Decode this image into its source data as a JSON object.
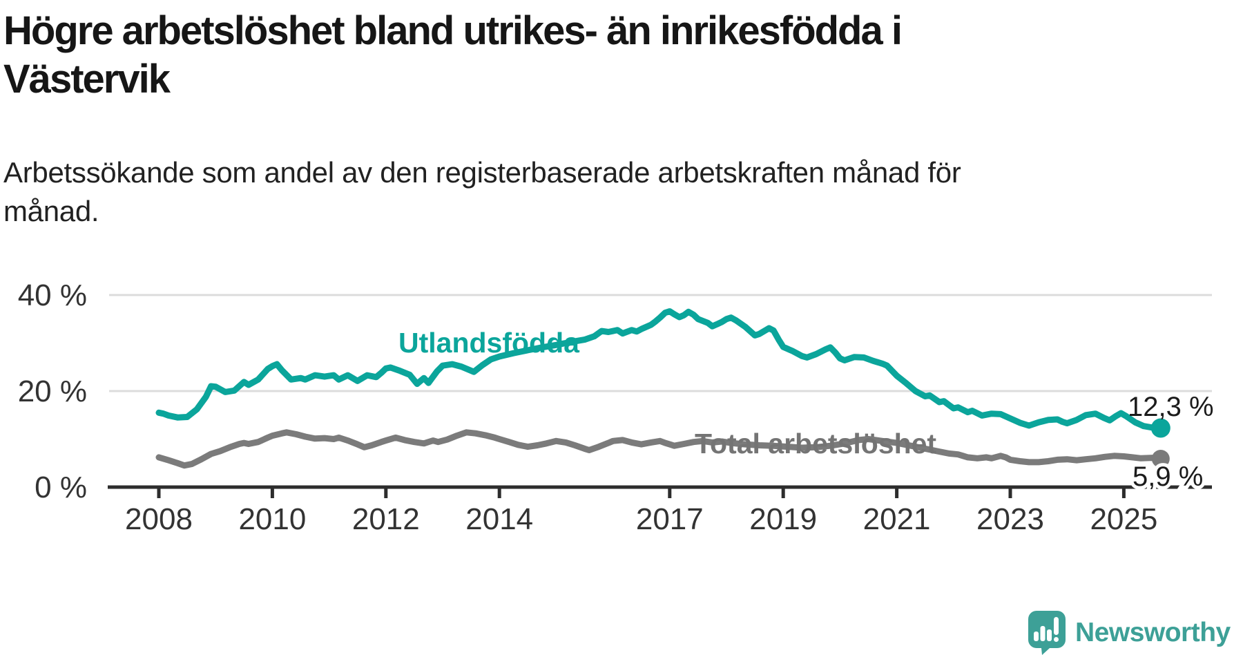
{
  "header": {
    "title_lines": [
      "Högre arbetslöshet bland utrikes- än inrikesfödda i",
      "Västervik"
    ],
    "subtitle_lines": [
      "Arbetssökande som andel av den registerbaserade arbetskraften månad för",
      "månad."
    ]
  },
  "chart_data": {
    "type": "line",
    "title": "Högre arbetslöshet bland utrikes- än inrikesfödda i Västervik",
    "subtitle": "Arbetssökande som andel av den registerbaserade arbetskraften månad för månad.",
    "unit": "%",
    "grid": true,
    "legend_position": "inline-labels",
    "colors": {
      "grid": "#dcdcdc",
      "axis": "#2d2d2d",
      "tick_label": "#333333",
      "annotation": "#1b1b1b",
      "background": "#ffffff"
    },
    "x_axis": {
      "range": [
        2007.6,
        2026.1
      ],
      "ticks": [
        {
          "year": 2008,
          "label": "2008"
        },
        {
          "year": 2010,
          "label": "2010"
        },
        {
          "year": 2012,
          "label": "2012"
        },
        {
          "year": 2014,
          "label": "2014"
        },
        {
          "year": 2017,
          "label": "2017"
        },
        {
          "year": 2019,
          "label": "2019"
        },
        {
          "year": 2021,
          "label": "2021"
        },
        {
          "year": 2023,
          "label": "2023"
        },
        {
          "year": 2025,
          "label": "2025"
        }
      ]
    },
    "y_axis": {
      "range": [
        0,
        42
      ],
      "ticks": [
        {
          "value": 0,
          "label": "0 %"
        },
        {
          "value": 20,
          "label": "20 %"
        },
        {
          "value": 40,
          "label": "40 %"
        }
      ]
    },
    "series": [
      {
        "name": "Utlandsfödda",
        "color": "#0ba59b",
        "label_color": "#0ba59b",
        "end_label": "12,3 %",
        "end_value": 12.3,
        "points": [
          [
            2008.0,
            15.5
          ],
          [
            2008.08,
            15.3
          ],
          [
            2008.17,
            14.9
          ],
          [
            2008.33,
            14.5
          ],
          [
            2008.5,
            14.6
          ],
          [
            2008.67,
            16.2
          ],
          [
            2008.83,
            18.8
          ],
          [
            2008.92,
            21.0
          ],
          [
            2009.0,
            20.9
          ],
          [
            2009.17,
            19.8
          ],
          [
            2009.33,
            20.1
          ],
          [
            2009.5,
            21.9
          ],
          [
            2009.58,
            21.3
          ],
          [
            2009.75,
            22.4
          ],
          [
            2009.92,
            24.6
          ],
          [
            2010.0,
            25.2
          ],
          [
            2010.08,
            25.6
          ],
          [
            2010.17,
            24.3
          ],
          [
            2010.33,
            22.4
          ],
          [
            2010.5,
            22.7
          ],
          [
            2010.58,
            22.4
          ],
          [
            2010.75,
            23.3
          ],
          [
            2010.92,
            23.0
          ],
          [
            2011.08,
            23.3
          ],
          [
            2011.17,
            22.4
          ],
          [
            2011.33,
            23.3
          ],
          [
            2011.5,
            22.1
          ],
          [
            2011.67,
            23.3
          ],
          [
            2011.83,
            22.9
          ],
          [
            2011.92,
            23.8
          ],
          [
            2012.0,
            24.7
          ],
          [
            2012.08,
            24.9
          ],
          [
            2012.25,
            24.2
          ],
          [
            2012.42,
            23.4
          ],
          [
            2012.55,
            21.5
          ],
          [
            2012.67,
            22.7
          ],
          [
            2012.75,
            21.7
          ],
          [
            2012.9,
            24.1
          ],
          [
            2013.0,
            25.3
          ],
          [
            2013.17,
            25.6
          ],
          [
            2013.33,
            25.1
          ],
          [
            2013.55,
            24.0
          ],
          [
            2013.7,
            25.4
          ],
          [
            2013.85,
            26.6
          ],
          [
            2014.0,
            27.2
          ],
          [
            2014.25,
            27.9
          ],
          [
            2014.5,
            28.5
          ],
          [
            2014.75,
            29.1
          ],
          [
            2015.0,
            29.6
          ],
          [
            2015.25,
            30.2
          ],
          [
            2015.5,
            30.7
          ],
          [
            2015.67,
            31.4
          ],
          [
            2015.8,
            32.5
          ],
          [
            2015.92,
            32.3
          ],
          [
            2016.08,
            32.7
          ],
          [
            2016.17,
            32.0
          ],
          [
            2016.33,
            32.7
          ],
          [
            2016.42,
            32.4
          ],
          [
            2016.5,
            32.9
          ],
          [
            2016.67,
            33.8
          ],
          [
            2016.75,
            34.5
          ],
          [
            2016.83,
            35.3
          ],
          [
            2016.92,
            36.3
          ],
          [
            2017.0,
            36.6
          ],
          [
            2017.08,
            36.0
          ],
          [
            2017.17,
            35.4
          ],
          [
            2017.25,
            35.8
          ],
          [
            2017.33,
            36.5
          ],
          [
            2017.42,
            35.9
          ],
          [
            2017.5,
            35.0
          ],
          [
            2017.67,
            34.2
          ],
          [
            2017.75,
            33.5
          ],
          [
            2017.83,
            33.9
          ],
          [
            2017.92,
            34.4
          ],
          [
            2018.0,
            35.0
          ],
          [
            2018.08,
            35.3
          ],
          [
            2018.17,
            34.7
          ],
          [
            2018.33,
            33.4
          ],
          [
            2018.5,
            31.6
          ],
          [
            2018.58,
            31.9
          ],
          [
            2018.75,
            33.1
          ],
          [
            2018.83,
            32.6
          ],
          [
            2018.92,
            30.7
          ],
          [
            2019.0,
            29.2
          ],
          [
            2019.17,
            28.3
          ],
          [
            2019.33,
            27.3
          ],
          [
            2019.42,
            27.0
          ],
          [
            2019.58,
            27.7
          ],
          [
            2019.75,
            28.7
          ],
          [
            2019.83,
            29.1
          ],
          [
            2019.92,
            28.0
          ],
          [
            2020.0,
            26.8
          ],
          [
            2020.08,
            26.4
          ],
          [
            2020.25,
            27.1
          ],
          [
            2020.42,
            27.0
          ],
          [
            2020.58,
            26.3
          ],
          [
            2020.75,
            25.7
          ],
          [
            2020.83,
            25.3
          ],
          [
            2021.0,
            23.2
          ],
          [
            2021.17,
            21.6
          ],
          [
            2021.33,
            20.0
          ],
          [
            2021.5,
            18.9
          ],
          [
            2021.58,
            19.1
          ],
          [
            2021.75,
            17.7
          ],
          [
            2021.83,
            17.9
          ],
          [
            2021.92,
            17.1
          ],
          [
            2022.0,
            16.4
          ],
          [
            2022.08,
            16.6
          ],
          [
            2022.25,
            15.6
          ],
          [
            2022.33,
            15.9
          ],
          [
            2022.5,
            14.9
          ],
          [
            2022.67,
            15.3
          ],
          [
            2022.83,
            15.2
          ],
          [
            2023.0,
            14.3
          ],
          [
            2023.17,
            13.4
          ],
          [
            2023.33,
            12.8
          ],
          [
            2023.5,
            13.5
          ],
          [
            2023.67,
            14.0
          ],
          [
            2023.83,
            14.1
          ],
          [
            2023.92,
            13.6
          ],
          [
            2024.0,
            13.3
          ],
          [
            2024.17,
            14.0
          ],
          [
            2024.33,
            15.0
          ],
          [
            2024.5,
            15.3
          ],
          [
            2024.65,
            14.4
          ],
          [
            2024.75,
            13.9
          ],
          [
            2024.85,
            14.7
          ],
          [
            2024.95,
            15.4
          ],
          [
            2025.05,
            14.7
          ],
          [
            2025.2,
            13.5
          ],
          [
            2025.35,
            12.7
          ],
          [
            2025.5,
            12.4
          ],
          [
            2025.65,
            12.3
          ]
        ]
      },
      {
        "name": "Total arbetslöshet",
        "color": "#7b7b7b",
        "label_color": "#747474",
        "end_label": "5,9 %",
        "end_value": 5.9,
        "points": [
          [
            2008.0,
            6.2
          ],
          [
            2008.17,
            5.6
          ],
          [
            2008.33,
            5.0
          ],
          [
            2008.45,
            4.5
          ],
          [
            2008.58,
            4.8
          ],
          [
            2008.75,
            5.8
          ],
          [
            2008.92,
            6.9
          ],
          [
            2009.08,
            7.5
          ],
          [
            2009.25,
            8.3
          ],
          [
            2009.42,
            9.0
          ],
          [
            2009.5,
            9.2
          ],
          [
            2009.58,
            9.0
          ],
          [
            2009.75,
            9.4
          ],
          [
            2009.92,
            10.3
          ],
          [
            2010.0,
            10.7
          ],
          [
            2010.17,
            11.2
          ],
          [
            2010.25,
            11.4
          ],
          [
            2010.42,
            11.0
          ],
          [
            2010.58,
            10.5
          ],
          [
            2010.75,
            10.1
          ],
          [
            2010.92,
            10.2
          ],
          [
            2011.08,
            10.0
          ],
          [
            2011.17,
            10.3
          ],
          [
            2011.33,
            9.7
          ],
          [
            2011.5,
            8.9
          ],
          [
            2011.62,
            8.3
          ],
          [
            2011.75,
            8.7
          ],
          [
            2011.92,
            9.4
          ],
          [
            2012.0,
            9.7
          ],
          [
            2012.17,
            10.3
          ],
          [
            2012.33,
            9.8
          ],
          [
            2012.5,
            9.4
          ],
          [
            2012.67,
            9.1
          ],
          [
            2012.83,
            9.7
          ],
          [
            2012.92,
            9.4
          ],
          [
            2013.08,
            9.9
          ],
          [
            2013.25,
            10.7
          ],
          [
            2013.42,
            11.4
          ],
          [
            2013.58,
            11.2
          ],
          [
            2013.75,
            10.8
          ],
          [
            2013.92,
            10.3
          ],
          [
            2014.0,
            10.0
          ],
          [
            2014.17,
            9.4
          ],
          [
            2014.33,
            8.8
          ],
          [
            2014.5,
            8.4
          ],
          [
            2014.67,
            8.7
          ],
          [
            2014.83,
            9.1
          ],
          [
            2015.0,
            9.6
          ],
          [
            2015.17,
            9.3
          ],
          [
            2015.33,
            8.7
          ],
          [
            2015.5,
            8.0
          ],
          [
            2015.58,
            7.7
          ],
          [
            2015.75,
            8.4
          ],
          [
            2015.92,
            9.2
          ],
          [
            2016.0,
            9.6
          ],
          [
            2016.17,
            9.8
          ],
          [
            2016.33,
            9.3
          ],
          [
            2016.5,
            8.9
          ],
          [
            2016.67,
            9.3
          ],
          [
            2016.83,
            9.6
          ],
          [
            2016.92,
            9.2
          ],
          [
            2017.0,
            8.9
          ],
          [
            2017.08,
            8.6
          ],
          [
            2017.25,
            9.0
          ],
          [
            2017.42,
            9.4
          ],
          [
            2017.58,
            9.6
          ],
          [
            2017.75,
            9.3
          ],
          [
            2017.92,
            9.5
          ],
          [
            2018.08,
            9.2
          ],
          [
            2018.33,
            8.9
          ],
          [
            2018.58,
            8.7
          ],
          [
            2018.83,
            8.6
          ],
          [
            2019.08,
            8.4
          ],
          [
            2019.33,
            8.2
          ],
          [
            2019.58,
            8.3
          ],
          [
            2019.83,
            8.6
          ],
          [
            2020.08,
            9.1
          ],
          [
            2020.33,
            9.8
          ],
          [
            2020.5,
            10.0
          ],
          [
            2020.75,
            9.6
          ],
          [
            2021.0,
            9.2
          ],
          [
            2021.25,
            8.6
          ],
          [
            2021.5,
            8.0
          ],
          [
            2021.75,
            7.4
          ],
          [
            2021.92,
            7.0
          ],
          [
            2022.08,
            6.8
          ],
          [
            2022.25,
            6.2
          ],
          [
            2022.42,
            6.0
          ],
          [
            2022.58,
            6.2
          ],
          [
            2022.67,
            6.0
          ],
          [
            2022.83,
            6.5
          ],
          [
            2022.92,
            6.2
          ],
          [
            2023.0,
            5.7
          ],
          [
            2023.17,
            5.4
          ],
          [
            2023.33,
            5.2
          ],
          [
            2023.5,
            5.2
          ],
          [
            2023.67,
            5.4
          ],
          [
            2023.83,
            5.7
          ],
          [
            2024.0,
            5.8
          ],
          [
            2024.17,
            5.6
          ],
          [
            2024.33,
            5.8
          ],
          [
            2024.5,
            6.0
          ],
          [
            2024.67,
            6.3
          ],
          [
            2024.83,
            6.5
          ],
          [
            2025.0,
            6.4
          ],
          [
            2025.15,
            6.2
          ],
          [
            2025.3,
            6.0
          ],
          [
            2025.5,
            6.1
          ],
          [
            2025.65,
            5.9
          ]
        ]
      }
    ]
  },
  "logo": {
    "name": "Newsworthy",
    "color": "#3da097",
    "icon": "newsworthy-speech-bubble-chart-icon"
  }
}
